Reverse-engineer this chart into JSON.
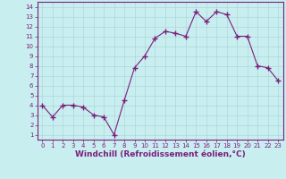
{
  "x": [
    0,
    1,
    2,
    3,
    4,
    5,
    6,
    7,
    8,
    9,
    10,
    11,
    12,
    13,
    14,
    15,
    16,
    17,
    18,
    19,
    20,
    21,
    22,
    23
  ],
  "y": [
    4.0,
    2.8,
    4.0,
    4.0,
    3.8,
    3.0,
    2.8,
    1.0,
    4.5,
    7.8,
    9.0,
    10.8,
    11.5,
    11.3,
    11.0,
    13.5,
    12.5,
    13.5,
    13.2,
    11.0,
    11.0,
    8.0,
    7.8,
    6.5
  ],
  "line_color": "#7b1f7b",
  "marker": "+",
  "marker_size": 4,
  "bg_color": "#c8eef0",
  "grid_color": "#aed8da",
  "xlabel": "Windchill (Refroidissement éolien,°C)",
  "xlim": [
    -0.5,
    23.5
  ],
  "ylim": [
    0.5,
    14.5
  ],
  "yticks": [
    1,
    2,
    3,
    4,
    5,
    6,
    7,
    8,
    9,
    10,
    11,
    12,
    13,
    14
  ],
  "xticks": [
    0,
    1,
    2,
    3,
    4,
    5,
    6,
    7,
    8,
    9,
    10,
    11,
    12,
    13,
    14,
    15,
    16,
    17,
    18,
    19,
    20,
    21,
    22,
    23
  ],
  "tick_fontsize": 5,
  "label_fontsize": 6.5,
  "label_color": "#7b1f7b",
  "tick_color": "#7b1f7b",
  "spine_color": "#7b1f7b"
}
